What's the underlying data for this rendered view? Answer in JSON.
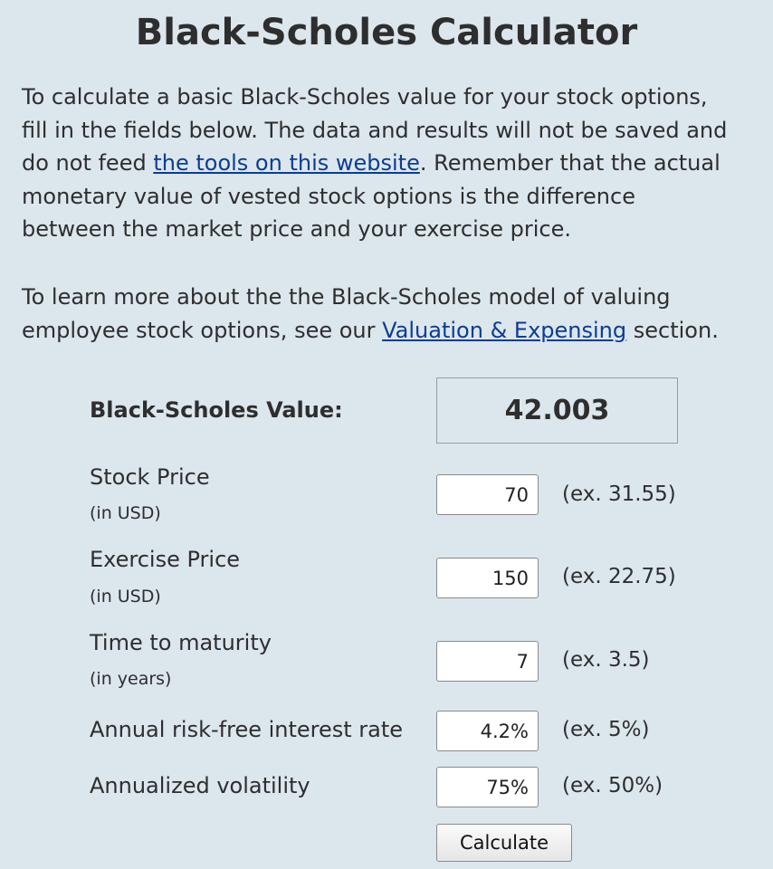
{
  "page": {
    "title": "Black-Scholes Calculator"
  },
  "intro": {
    "p1_part1": "To calculate a basic Black-Scholes value for your stock options,",
    "p1_part2": "fill in the fields below. The data and results will not be saved and",
    "p1_part3_before": "do not feed ",
    "p1_link": "the tools on this website",
    "p1_part3_after": ". Remember that the actual",
    "p1_part4": "monetary value of vested stock options is the difference",
    "p1_part5": "between the market price and your exercise price.",
    "p2_part1": "To learn more about the the Black-Scholes model of valuing",
    "p2_part2_before": "employee stock options, see our ",
    "p2_link": "Valuation & Expensing",
    "p2_part2_after": " section."
  },
  "result": {
    "label": "Black-Scholes Value:",
    "value": "42.003"
  },
  "fields": {
    "stock_price": {
      "label": "Stock Price",
      "unit": "(in USD)",
      "value": "70",
      "example": "(ex. 31.55)"
    },
    "exercise_price": {
      "label": "Exercise Price",
      "unit": "(in USD)",
      "value": "150",
      "example": "(ex. 22.75)"
    },
    "time_to_maturity": {
      "label": "Time to maturity",
      "unit": "(in years)",
      "value": "7",
      "example": "(ex. 3.5)"
    },
    "risk_free_rate": {
      "label": "Annual risk-free interest rate",
      "value": "4.2%",
      "example": "(ex. 5%)"
    },
    "volatility": {
      "label": "Annualized volatility",
      "value": "75%",
      "example": "(ex. 50%)"
    }
  },
  "actions": {
    "calculate_label": "Calculate"
  },
  "colors": {
    "background": "#dce6ed",
    "link": "#0b3d91",
    "text": "#2e2e2e"
  }
}
